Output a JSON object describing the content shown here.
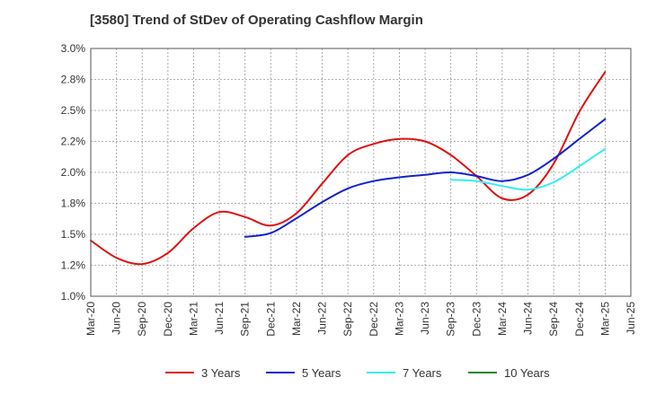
{
  "chart_data": {
    "type": "line",
    "title": "[3580]  Trend of StDev of Operating Cashflow Margin",
    "xlabel": "",
    "ylabel": "",
    "ylim": [
      1.0,
      3.0
    ],
    "yticks": [
      "1.0%",
      "1.2%",
      "1.5%",
      "1.8%",
      "2.0%",
      "2.2%",
      "2.5%",
      "2.8%",
      "3.0%"
    ],
    "x": [
      "Mar-20",
      "Jun-20",
      "Sep-20",
      "Dec-20",
      "Mar-21",
      "Jun-21",
      "Sep-21",
      "Dec-21",
      "Mar-22",
      "Jun-22",
      "Sep-22",
      "Dec-22",
      "Mar-23",
      "Jun-23",
      "Sep-23",
      "Dec-23",
      "Mar-24",
      "Jun-24",
      "Sep-24",
      "Dec-24",
      "Mar-25",
      "Jun-25"
    ],
    "grid": true,
    "legend_position": "bottom",
    "series": [
      {
        "name": "3 Years",
        "color": "#dd1111",
        "values": [
          1.45,
          1.31,
          1.26,
          1.35,
          1.55,
          1.68,
          1.64,
          1.57,
          1.67,
          1.91,
          2.14,
          2.23,
          2.27,
          2.25,
          2.14,
          1.97,
          1.79,
          1.82,
          2.07,
          2.49,
          2.81,
          null
        ]
      },
      {
        "name": "5 Years",
        "color": "#1122cc",
        "values": [
          null,
          null,
          null,
          null,
          null,
          null,
          1.48,
          1.51,
          1.63,
          1.76,
          1.87,
          1.93,
          1.96,
          1.98,
          2.0,
          1.97,
          1.93,
          1.98,
          2.11,
          2.27,
          2.43,
          null
        ]
      },
      {
        "name": "7 Years",
        "color": "#33eeee",
        "values": [
          null,
          null,
          null,
          null,
          null,
          null,
          null,
          null,
          null,
          null,
          null,
          null,
          null,
          null,
          1.94,
          1.93,
          1.89,
          1.86,
          1.92,
          2.05,
          2.19,
          null
        ]
      },
      {
        "name": "10 Years",
        "color": "#228822",
        "values": [
          null,
          null,
          null,
          null,
          null,
          null,
          null,
          null,
          null,
          null,
          null,
          null,
          null,
          null,
          null,
          null,
          null,
          null,
          null,
          null,
          null,
          null
        ]
      }
    ]
  }
}
